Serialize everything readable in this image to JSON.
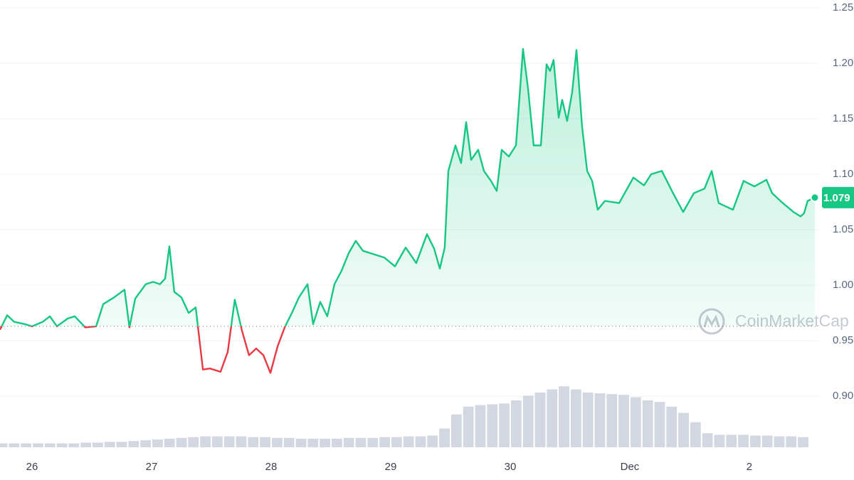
{
  "chart_data": {
    "type": "line",
    "x": [
      -0.268,
      -0.208,
      -0.149,
      -0.06,
      0,
      0.089,
      0.149,
      0.208,
      0.298,
      0.357,
      0.446,
      0.536,
      0.595,
      0.685,
      0.774,
      0.815,
      0.863,
      0.952,
      1.012,
      1.071,
      1.113,
      1.149,
      1.19,
      1.25,
      1.31,
      1.369,
      1.429,
      1.488,
      1.577,
      1.637,
      1.696,
      1.756,
      1.815,
      1.875,
      1.935,
      1.994,
      2.054,
      2.113,
      2.173,
      2.232,
      2.304,
      2.351,
      2.411,
      2.47,
      2.53,
      2.589,
      2.649,
      2.708,
      2.768,
      2.827,
      2.946,
      3.036,
      3.125,
      3.214,
      3.304,
      3.363,
      3.411,
      3.452,
      3.482,
      3.542,
      3.589,
      3.631,
      3.673,
      3.732,
      3.78,
      3.839,
      3.887,
      3.929,
      3.988,
      4.048,
      4.107,
      4.149,
      4.196,
      4.256,
      4.304,
      4.333,
      4.363,
      4.405,
      4.435,
      4.476,
      4.518,
      4.554,
      4.601,
      4.643,
      4.685,
      4.732,
      4.792,
      4.911,
      5.03,
      5.119,
      5.179,
      5.268,
      5.357,
      5.446,
      5.536,
      5.625,
      5.685,
      5.744,
      5.804,
      5.863,
      5.952,
      6.042,
      6.143,
      6.19,
      6.28,
      6.369,
      6.429,
      6.458,
      6.488,
      6.548
    ],
    "values": [
      0.96,
      0.973,
      0.967,
      0.965,
      0.963,
      0.967,
      0.972,
      0.963,
      0.97,
      0.972,
      0.962,
      0.963,
      0.983,
      0.989,
      0.996,
      0.962,
      0.988,
      1.001,
      1.003,
      1.001,
      1.006,
      1.035,
      0.994,
      0.989,
      0.975,
      0.98,
      0.924,
      0.925,
      0.922,
      0.94,
      0.987,
      0.959,
      0.937,
      0.943,
      0.937,
      0.921,
      0.945,
      0.962,
      0.975,
      0.989,
      1.001,
      0.965,
      0.985,
      0.972,
      1.001,
      1.013,
      1.029,
      1.04,
      1.031,
      1.029,
      1.025,
      1.017,
      1.034,
      1.02,
      1.046,
      1.033,
      1.015,
      1.034,
      1.103,
      1.126,
      1.11,
      1.147,
      1.113,
      1.122,
      1.103,
      1.094,
      1.085,
      1.122,
      1.116,
      1.126,
      1.213,
      1.177,
      1.126,
      1.126,
      1.199,
      1.193,
      1.203,
      1.151,
      1.167,
      1.148,
      1.174,
      1.212,
      1.143,
      1.103,
      1.094,
      1.068,
      1.076,
      1.074,
      1.097,
      1.09,
      1.1,
      1.103,
      1.084,
      1.066,
      1.083,
      1.087,
      1.103,
      1.074,
      1.071,
      1.068,
      1.094,
      1.089,
      1.095,
      1.083,
      1.074,
      1.066,
      1.062,
      1.065,
      1.076,
      1.079
    ],
    "color_up": "#16c784",
    "color_down": "#ea3943",
    "reference": 0.963,
    "xlim": [
      -0.268,
      6.548
    ],
    "xticks": [
      {
        "value": 0,
        "label": "26"
      },
      {
        "value": 1,
        "label": "27"
      },
      {
        "value": 2,
        "label": "28"
      },
      {
        "value": 3,
        "label": "29"
      },
      {
        "value": 4,
        "label": "30"
      },
      {
        "value": 5,
        "label": "Dec"
      },
      {
        "value": 6,
        "label": "2"
      }
    ],
    "ylim": [
      0.854,
      1.257
    ],
    "yticks": [
      {
        "value": 1.25,
        "label": "1.25"
      },
      {
        "value": 1.2,
        "label": "1.20"
      },
      {
        "value": 1.15,
        "label": "1.15"
      },
      {
        "value": 1.1,
        "label": "1.10"
      },
      {
        "value": 1.05,
        "label": "1.05"
      },
      {
        "value": 1.0,
        "label": "1.00"
      },
      {
        "value": 0.95,
        "label": "0.95"
      },
      {
        "value": 0.9,
        "label": "0.90"
      }
    ],
    "grid": true,
    "price_label": "1.079",
    "watermark": "CoinMarketCap",
    "volume": {
      "color": "#d3d7e1",
      "x": [
        -0.25,
        -0.15,
        -0.05,
        0.05,
        0.15,
        0.25,
        0.35,
        0.45,
        0.55,
        0.65,
        0.75,
        0.85,
        0.95,
        1.05,
        1.15,
        1.25,
        1.35,
        1.45,
        1.55,
        1.65,
        1.75,
        1.85,
        1.95,
        2.05,
        2.15,
        2.25,
        2.35,
        2.45,
        2.55,
        2.65,
        2.75,
        2.85,
        2.95,
        3.05,
        3.15,
        3.25,
        3.35,
        3.45,
        3.55,
        3.65,
        3.75,
        3.85,
        3.95,
        4.05,
        4.15,
        4.25,
        4.35,
        4.45,
        4.55,
        4.65,
        4.75,
        4.85,
        4.95,
        5.05,
        5.15,
        5.25,
        5.35,
        5.45,
        5.55,
        5.65,
        5.75,
        5.85,
        5.95,
        6.05,
        6.15,
        6.25,
        6.35,
        6.45
      ],
      "values": [
        5,
        5,
        5,
        5,
        5,
        5,
        5,
        6,
        6,
        7,
        7,
        8,
        9,
        10,
        11,
        12,
        13,
        14,
        14,
        14,
        14,
        13,
        13,
        12,
        12,
        11,
        11,
        11,
        11,
        12,
        12,
        12,
        13,
        13,
        14,
        14,
        15,
        24,
        42,
        52,
        54,
        55,
        56,
        60,
        66,
        70,
        74,
        78,
        74,
        70,
        69,
        68,
        67,
        64,
        60,
        58,
        52,
        44,
        32,
        18,
        16,
        16,
        16,
        15,
        15,
        14,
        14,
        13
      ],
      "y2lim": [
        0,
        100
      ]
    }
  }
}
